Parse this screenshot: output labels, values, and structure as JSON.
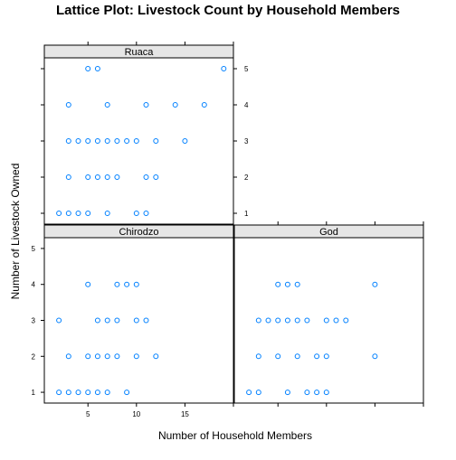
{
  "chart_data": {
    "type": "scatter",
    "title": "Lattice Plot: Livestock Count by Household Members",
    "xlabel": "Number of Household Members",
    "ylabel": "Number of Livestock Owned",
    "xlim": [
      0.5,
      20
    ],
    "ylim": [
      0.7,
      5.3
    ],
    "x_ticks": [
      5,
      10,
      15
    ],
    "y_ticks": [
      1,
      2,
      3,
      4,
      5
    ],
    "point_color": "#0080ff",
    "marker": "open-circle",
    "grid": false,
    "panels": [
      {
        "name": "Ruaca",
        "points": [
          {
            "x": 5,
            "y": 5
          },
          {
            "x": 6,
            "y": 5
          },
          {
            "x": 19,
            "y": 5
          },
          {
            "x": 3,
            "y": 4
          },
          {
            "x": 7,
            "y": 4
          },
          {
            "x": 11,
            "y": 4
          },
          {
            "x": 14,
            "y": 4
          },
          {
            "x": 17,
            "y": 4
          },
          {
            "x": 3,
            "y": 3
          },
          {
            "x": 4,
            "y": 3
          },
          {
            "x": 5,
            "y": 3
          },
          {
            "x": 6,
            "y": 3
          },
          {
            "x": 7,
            "y": 3
          },
          {
            "x": 8,
            "y": 3
          },
          {
            "x": 9,
            "y": 3
          },
          {
            "x": 10,
            "y": 3
          },
          {
            "x": 12,
            "y": 3
          },
          {
            "x": 15,
            "y": 3
          },
          {
            "x": 3,
            "y": 2
          },
          {
            "x": 5,
            "y": 2
          },
          {
            "x": 6,
            "y": 2
          },
          {
            "x": 7,
            "y": 2
          },
          {
            "x": 8,
            "y": 2
          },
          {
            "x": 11,
            "y": 2
          },
          {
            "x": 12,
            "y": 2
          },
          {
            "x": 2,
            "y": 1
          },
          {
            "x": 3,
            "y": 1
          },
          {
            "x": 4,
            "y": 1
          },
          {
            "x": 5,
            "y": 1
          },
          {
            "x": 7,
            "y": 1
          },
          {
            "x": 10,
            "y": 1
          },
          {
            "x": 11,
            "y": 1
          }
        ]
      },
      {
        "name": "Chirodzo",
        "points": [
          {
            "x": 5,
            "y": 4
          },
          {
            "x": 8,
            "y": 4
          },
          {
            "x": 9,
            "y": 4
          },
          {
            "x": 10,
            "y": 4
          },
          {
            "x": 2,
            "y": 3
          },
          {
            "x": 6,
            "y": 3
          },
          {
            "x": 7,
            "y": 3
          },
          {
            "x": 8,
            "y": 3
          },
          {
            "x": 10,
            "y": 3
          },
          {
            "x": 11,
            "y": 3
          },
          {
            "x": 3,
            "y": 2
          },
          {
            "x": 5,
            "y": 2
          },
          {
            "x": 6,
            "y": 2
          },
          {
            "x": 7,
            "y": 2
          },
          {
            "x": 8,
            "y": 2
          },
          {
            "x": 10,
            "y": 2
          },
          {
            "x": 12,
            "y": 2
          },
          {
            "x": 2,
            "y": 1
          },
          {
            "x": 3,
            "y": 1
          },
          {
            "x": 4,
            "y": 1
          },
          {
            "x": 5,
            "y": 1
          },
          {
            "x": 6,
            "y": 1
          },
          {
            "x": 7,
            "y": 1
          },
          {
            "x": 9,
            "y": 1
          }
        ]
      },
      {
        "name": "God",
        "points": [
          {
            "x": 5,
            "y": 4
          },
          {
            "x": 6,
            "y": 4
          },
          {
            "x": 7,
            "y": 4
          },
          {
            "x": 15,
            "y": 4
          },
          {
            "x": 3,
            "y": 3
          },
          {
            "x": 4,
            "y": 3
          },
          {
            "x": 5,
            "y": 3
          },
          {
            "x": 6,
            "y": 3
          },
          {
            "x": 7,
            "y": 3
          },
          {
            "x": 8,
            "y": 3
          },
          {
            "x": 10,
            "y": 3
          },
          {
            "x": 11,
            "y": 3
          },
          {
            "x": 12,
            "y": 3
          },
          {
            "x": 3,
            "y": 2
          },
          {
            "x": 5,
            "y": 2
          },
          {
            "x": 7,
            "y": 2
          },
          {
            "x": 9,
            "y": 2
          },
          {
            "x": 10,
            "y": 2
          },
          {
            "x": 15,
            "y": 2
          },
          {
            "x": 2,
            "y": 1
          },
          {
            "x": 3,
            "y": 1
          },
          {
            "x": 6,
            "y": 1
          },
          {
            "x": 8,
            "y": 1
          },
          {
            "x": 9,
            "y": 1
          },
          {
            "x": 10,
            "y": 1
          }
        ]
      }
    ]
  }
}
